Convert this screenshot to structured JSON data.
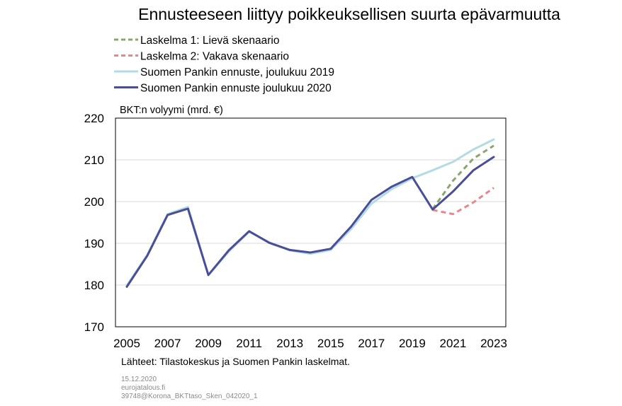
{
  "chart_data": {
    "type": "line",
    "title": "Ennusteeseen liittyy poikkeuksellisen suurta epävarmuutta",
    "ylabel": "BKT:n volyymi (mrd. €)",
    "xlabel": "",
    "xlim": [
      2005,
      2023
    ],
    "ylim": [
      170,
      220
    ],
    "yticks": [
      170,
      180,
      190,
      200,
      210,
      220
    ],
    "xticks": [
      2005,
      2007,
      2009,
      2011,
      2013,
      2015,
      2017,
      2019,
      2021,
      2023
    ],
    "grid": "horizontal",
    "legend_position": "top-left, above plot",
    "series": [
      {
        "name": "Laskelma 1: Lievä skenaario",
        "color": "#8aa56e",
        "style": "dashed",
        "points": [
          [
            2020,
            198.2
          ],
          [
            2021,
            205.0
          ],
          [
            2022,
            210.3
          ],
          [
            2023,
            213.4
          ]
        ]
      },
      {
        "name": "Laskelma 2: Vakava skenaario",
        "color": "#e8868d",
        "style": "dashed",
        "points": [
          [
            2020,
            198.0
          ],
          [
            2021,
            197.0
          ],
          [
            2022,
            199.8
          ],
          [
            2023,
            203.3
          ]
        ]
      },
      {
        "name": "Suomen Pankin ennuste, joulukuu 2019",
        "color": "#b3dbe3",
        "style": "solid",
        "points": [
          [
            2005,
            179.9
          ],
          [
            2006,
            187.2
          ],
          [
            2007,
            197.0
          ],
          [
            2008,
            198.7
          ],
          [
            2009,
            182.4
          ],
          [
            2010,
            188.0
          ],
          [
            2011,
            192.8
          ],
          [
            2012,
            190.2
          ],
          [
            2013,
            188.3
          ],
          [
            2014,
            187.5
          ],
          [
            2015,
            188.4
          ],
          [
            2016,
            193.4
          ],
          [
            2017,
            199.5
          ],
          [
            2018,
            203.0
          ],
          [
            2019,
            205.6
          ],
          [
            2020,
            207.5
          ],
          [
            2021,
            209.5
          ],
          [
            2022,
            212.5
          ],
          [
            2023,
            214.9
          ]
        ]
      },
      {
        "name": "Suomen Pankin ennuste joulukuu 2020",
        "color": "#4a4e96",
        "style": "solid",
        "points": [
          [
            2005,
            179.6
          ],
          [
            2006,
            187.0
          ],
          [
            2007,
            196.8
          ],
          [
            2008,
            198.3
          ],
          [
            2009,
            182.4
          ],
          [
            2010,
            188.3
          ],
          [
            2011,
            192.9
          ],
          [
            2012,
            190.1
          ],
          [
            2013,
            188.4
          ],
          [
            2014,
            187.8
          ],
          [
            2015,
            188.7
          ],
          [
            2016,
            194.0
          ],
          [
            2017,
            200.4
          ],
          [
            2018,
            203.6
          ],
          [
            2019,
            205.9
          ],
          [
            2020,
            198.1
          ],
          [
            2021,
            202.4
          ],
          [
            2022,
            207.5
          ],
          [
            2023,
            210.7
          ]
        ]
      }
    ]
  },
  "source_text": "Lähteet: Tilastokeskus  ja Suomen Pankin laskelmat.",
  "footer": {
    "date": "15.12.2020",
    "site": "eurojatalous.fi",
    "code": "39748@Korona_BKTtaso_Sken_042020_1"
  }
}
